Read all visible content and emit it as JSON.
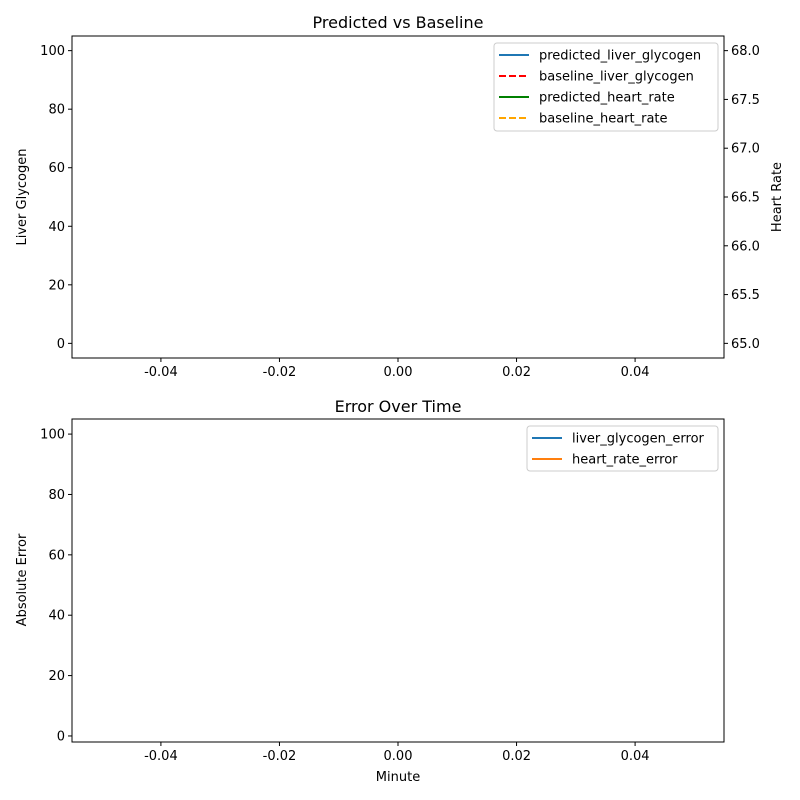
{
  "chart_data": [
    {
      "type": "line",
      "title": "Predicted vs Baseline",
      "xlabel": "",
      "ylabel": "Liver Glycogen",
      "y2label": "Heart Rate",
      "xlim": [
        -0.055,
        0.055
      ],
      "ylim": [
        -5,
        105
      ],
      "y2lim": [
        64.85,
        68.15
      ],
      "xticks": [
        "-0.04",
        "-0.02",
        "0.00",
        "0.02",
        "0.04"
      ],
      "yticks": [
        "0",
        "20",
        "40",
        "60",
        "80",
        "100"
      ],
      "y2ticks": [
        "65.0",
        "65.5",
        "66.0",
        "66.5",
        "67.0",
        "67.5",
        "68.0"
      ],
      "legend_position": "upper right",
      "grid": false,
      "series": [
        {
          "name": "predicted_liver_glycogen",
          "axis": "left",
          "color": "#1f77b4",
          "dash": "solid",
          "x": [],
          "y": []
        },
        {
          "name": "baseline_liver_glycogen",
          "axis": "left",
          "color": "#ff0000",
          "dash": "dashed",
          "x": [],
          "y": []
        },
        {
          "name": "predicted_heart_rate",
          "axis": "right",
          "color": "#008000",
          "dash": "solid",
          "x": [],
          "y": []
        },
        {
          "name": "baseline_heart_rate",
          "axis": "right",
          "color": "#ffa500",
          "dash": "dashed",
          "x": [],
          "y": []
        }
      ]
    },
    {
      "type": "line",
      "title": "Error Over Time",
      "xlabel": "Minute",
      "ylabel": "Absolute Error",
      "xlim": [
        -0.055,
        0.055
      ],
      "ylim": [
        -2,
        105
      ],
      "xticks": [
        "-0.04",
        "-0.02",
        "0.00",
        "0.02",
        "0.04"
      ],
      "yticks": [
        "0",
        "20",
        "40",
        "60",
        "80",
        "100"
      ],
      "legend_position": "upper right",
      "grid": false,
      "series": [
        {
          "name": "liver_glycogen_error",
          "axis": "left",
          "color": "#1f77b4",
          "dash": "solid",
          "x": [],
          "y": []
        },
        {
          "name": "heart_rate_error",
          "axis": "left",
          "color": "#ff7f0e",
          "dash": "solid",
          "x": [],
          "y": []
        }
      ]
    }
  ]
}
